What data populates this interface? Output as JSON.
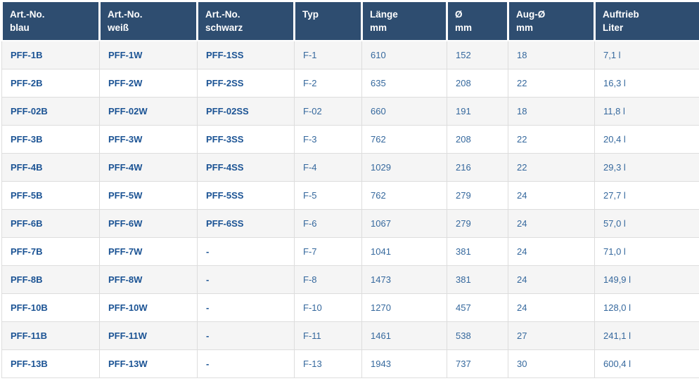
{
  "colors": {
    "header_background": "#2e4d70",
    "header_text": "#ffffff",
    "article_number_text": "#1b5394",
    "value_text": "#35689d",
    "row_stripe": "#f5f5f5",
    "cell_border": "#dddddd"
  },
  "table": {
    "headers": [
      "Art.-No.\nblau",
      "Art.-No.\nweiß",
      "Art.-No.\nschwarz",
      "Typ",
      "Länge\nmm",
      "Ø\nmm",
      "Aug-Ø\nmm",
      "Auftrieb\nLiter"
    ],
    "rows": [
      [
        "PFF-1B",
        "PFF-1W",
        "PFF-1SS",
        "F-1",
        "610",
        "152",
        "18",
        "7,1 l"
      ],
      [
        "PFF-2B",
        "PFF-2W",
        "PFF-2SS",
        "F-2",
        "635",
        "208",
        "22",
        "16,3 l"
      ],
      [
        "PFF-02B",
        "PFF-02W",
        "PFF-02SS",
        "F-02",
        "660",
        "191",
        "18",
        "11,8 l"
      ],
      [
        "PFF-3B",
        "PFF-3W",
        "PFF-3SS",
        "F-3",
        "762",
        "208",
        "22",
        "20,4 l"
      ],
      [
        "PFF-4B",
        "PFF-4W",
        "PFF-4SS",
        "F-4",
        "1029",
        "216",
        "22",
        "29,3 l"
      ],
      [
        "PFF-5B",
        "PFF-5W",
        "PFF-5SS",
        "F-5",
        "762",
        "279",
        "24",
        "27,7 l"
      ],
      [
        "PFF-6B",
        "PFF-6W",
        "PFF-6SS",
        "F-6",
        "1067",
        "279",
        "24",
        "57,0 l"
      ],
      [
        "PFF-7B",
        "PFF-7W",
        "-",
        "F-7",
        "1041",
        "381",
        "24",
        "71,0 l"
      ],
      [
        "PFF-8B",
        "PFF-8W",
        "-",
        "F-8",
        "1473",
        "381",
        "24",
        "149,9 l"
      ],
      [
        "PFF-10B",
        "PFF-10W",
        "-",
        "F-10",
        "1270",
        "457",
        "24",
        "128,0 l"
      ],
      [
        "PFF-11B",
        "PFF-11W",
        "-",
        "F-11",
        "1461",
        "538",
        "27",
        "241,1 l"
      ],
      [
        "PFF-13B",
        "PFF-13W",
        "-",
        "F-13",
        "1943",
        "737",
        "30",
        "600,4 l"
      ]
    ]
  }
}
